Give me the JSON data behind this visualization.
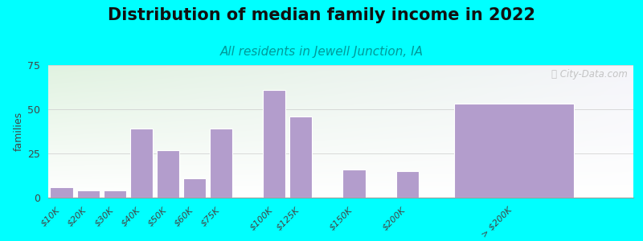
{
  "title": "Distribution of median family income in 2022",
  "subtitle": "All residents in Jewell Junction, IA",
  "ylabel": "families",
  "background_outer": "#00FFFF",
  "bar_color": "#b39dcc",
  "bar_edge_color": "#ffffff",
  "categories": [
    "$10K",
    "$20K",
    "$30K",
    "$40K",
    "$50K",
    "$60K",
    "$75K",
    "$100K",
    "$125K",
    "$150K",
    "$200K",
    "> $200K"
  ],
  "values": [
    6,
    4,
    4,
    39,
    27,
    11,
    39,
    61,
    46,
    16,
    15,
    53
  ],
  "ylim": [
    0,
    75
  ],
  "yticks": [
    0,
    25,
    50,
    75
  ],
  "title_fontsize": 15,
  "subtitle_fontsize": 11,
  "ylabel_fontsize": 9,
  "tick_fontsize": 8,
  "watermark": "ⓘ City-Data.com",
  "x_positions": [
    0,
    1,
    2,
    3,
    4,
    5,
    6,
    8,
    9,
    11,
    13,
    17
  ],
  "bar_widths": [
    0.85,
    0.85,
    0.85,
    0.85,
    0.85,
    0.85,
    0.85,
    0.85,
    0.85,
    0.85,
    0.85,
    4.5
  ]
}
